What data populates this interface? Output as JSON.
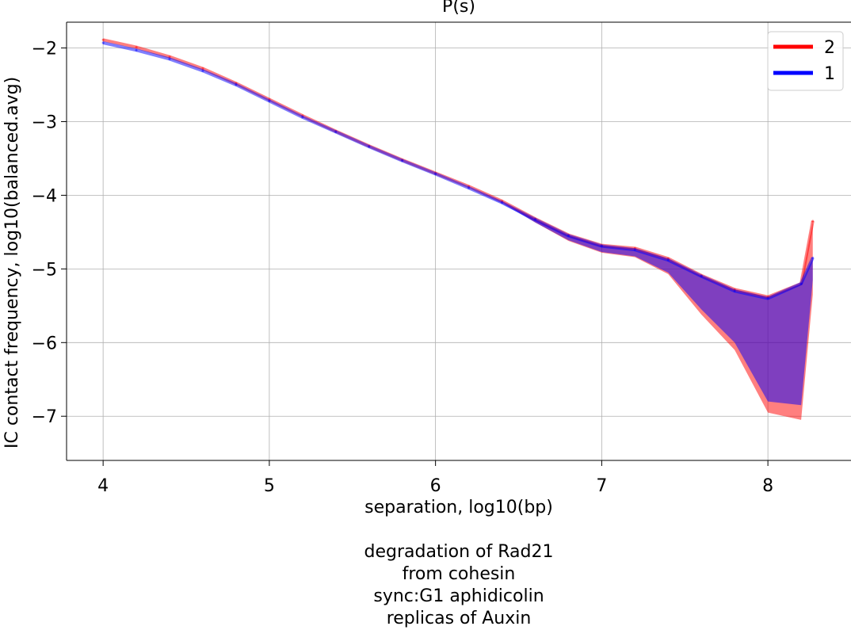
{
  "chart_data": {
    "type": "line",
    "title": "P(s)",
    "xlabel": "separation, log10(bp)",
    "ylabel": "IC contact frequency, log10(balanced.avg)",
    "xlim": [
      3.78,
      8.5
    ],
    "ylim": [
      -7.6,
      -1.65
    ],
    "xticks": [
      4,
      5,
      6,
      7,
      8
    ],
    "yticks": [
      -2,
      -3,
      -4,
      -5,
      -6,
      -7
    ],
    "xtick_labels": [
      "4",
      "5",
      "6",
      "7",
      "8"
    ],
    "ytick_labels": [
      "−2",
      "−3",
      "−4",
      "−5",
      "−6",
      "−7"
    ],
    "grid": true,
    "legend_position": "top-right",
    "series": [
      {
        "name": "2",
        "color": "#ff0000",
        "x": [
          4.0,
          4.2,
          4.4,
          4.6,
          4.8,
          5.0,
          5.2,
          5.4,
          5.6,
          5.8,
          6.0,
          6.2,
          6.4,
          6.6,
          6.8,
          7.0,
          7.2,
          7.4,
          7.6,
          7.8,
          8.0,
          8.2,
          8.27
        ],
        "y": [
          -1.89,
          -1.99,
          -2.12,
          -2.28,
          -2.48,
          -2.7,
          -2.92,
          -3.13,
          -3.33,
          -3.52,
          -3.7,
          -3.88,
          -4.08,
          -4.32,
          -4.54,
          -4.68,
          -4.72,
          -4.86,
          -5.09,
          -5.28,
          -5.38,
          -5.2,
          -4.35
        ],
        "band_bottom": [
          -1.89,
          -1.99,
          -2.12,
          -2.28,
          -2.48,
          -2.7,
          -2.92,
          -3.13,
          -3.33,
          -3.52,
          -3.7,
          -3.88,
          -4.09,
          -4.37,
          -4.62,
          -4.78,
          -4.84,
          -5.07,
          -5.62,
          -6.1,
          -6.95,
          -7.05,
          -5.35
        ]
      },
      {
        "name": "1",
        "color": "#0000ff",
        "x": [
          4.0,
          4.2,
          4.4,
          4.6,
          4.8,
          5.0,
          5.2,
          5.4,
          5.6,
          5.8,
          6.0,
          6.2,
          6.4,
          6.6,
          6.8,
          7.0,
          7.2,
          7.4,
          7.6,
          7.8,
          8.0,
          8.2,
          8.27
        ],
        "y": [
          -1.93,
          -2.03,
          -2.15,
          -2.31,
          -2.5,
          -2.72,
          -2.94,
          -3.14,
          -3.34,
          -3.53,
          -3.71,
          -3.9,
          -4.1,
          -4.33,
          -4.55,
          -4.69,
          -4.74,
          -4.88,
          -5.1,
          -5.3,
          -5.4,
          -5.2,
          -4.85
        ],
        "band_bottom": [
          -1.93,
          -2.03,
          -2.15,
          -2.31,
          -2.5,
          -2.72,
          -2.94,
          -3.14,
          -3.34,
          -3.53,
          -3.71,
          -3.9,
          -4.11,
          -4.37,
          -4.61,
          -4.77,
          -4.83,
          -5.05,
          -5.55,
          -6.0,
          -6.8,
          -6.85,
          -5.15
        ]
      }
    ]
  },
  "caption": {
    "lines": [
      "degradation of Rad21",
      "from cohesin",
      "sync:G1 aphidicolin",
      "replicas of Auxin"
    ]
  }
}
